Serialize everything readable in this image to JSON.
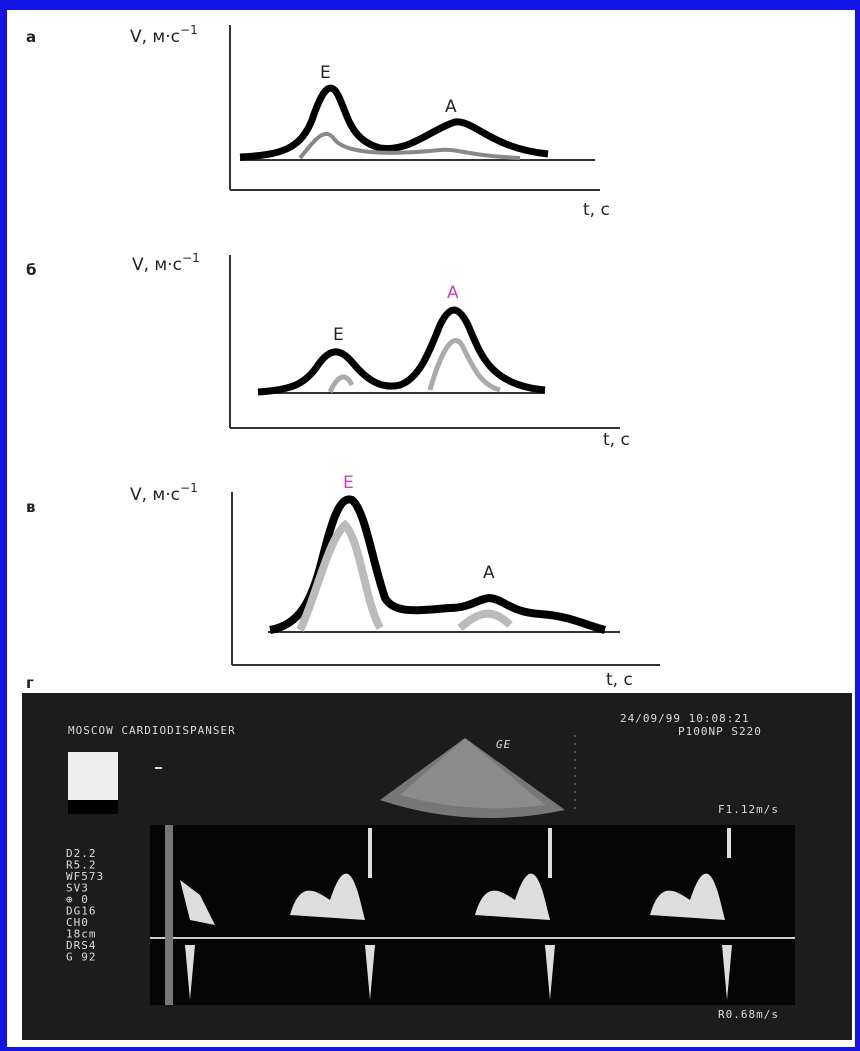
{
  "panels": [
    {
      "label": "а",
      "y_label": "V, м·с",
      "y_label_exponent": "−1",
      "x_label": "t, с",
      "peak_e": "E",
      "peak_a": "A"
    },
    {
      "label": "б",
      "y_label": "V, м·с",
      "y_label_exponent": "−1",
      "x_label": "t, с",
      "peak_e": "E",
      "peak_a": "A"
    },
    {
      "label": "в",
      "y_label": "V, м·с",
      "y_label_exponent": "−1",
      "x_label": "t, с",
      "peak_e": "E",
      "peak_a": "A"
    }
  ],
  "echo_panel": {
    "label": "г",
    "clinic": "MOSCOW CARDIODISPANSER",
    "datetime": "24/09/99 10:08:21",
    "probe": "P100NP  S220",
    "brand": "GE",
    "velocity_top": "F1.12m/s",
    "velocity_bottom": "R0.68m/s",
    "settings": [
      "D2.2",
      "R5.2",
      "WF573",
      "SV3",
      "⊕ 0",
      "DG16",
      "CH0",
      "18cm",
      "DRS4",
      "G 92"
    ]
  }
}
